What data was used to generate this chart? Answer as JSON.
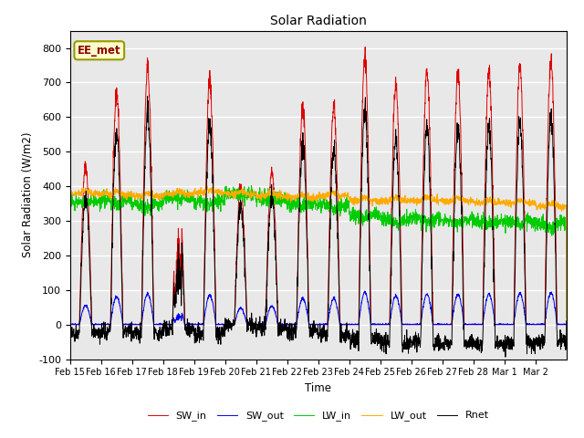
{
  "title": "Solar Radiation",
  "xlabel": "Time",
  "ylabel": "Solar Radiation (W/m2)",
  "ylim": [
    -100,
    850
  ],
  "yticks": [
    -100,
    0,
    100,
    200,
    300,
    400,
    500,
    600,
    700,
    800
  ],
  "x_tick_labels": [
    "Feb 15",
    "Feb 16",
    "Feb 17",
    "Feb 18",
    "Feb 19",
    "Feb 20",
    "Feb 21",
    "Feb 22",
    "Feb 23",
    "Feb 24",
    "Feb 25",
    "Feb 26",
    "Feb 27",
    "Feb 28",
    "Mar 1",
    "Mar 2"
  ],
  "colors": {
    "SW_in": "#dd0000",
    "SW_out": "#0000ee",
    "LW_in": "#00cc00",
    "LW_out": "#ffaa00",
    "Rnet": "#000000"
  },
  "annotation_text": "EE_met",
  "bg_color": "#ffffff",
  "plot_bg_color": "#e8e8e8",
  "n_points": 2400
}
